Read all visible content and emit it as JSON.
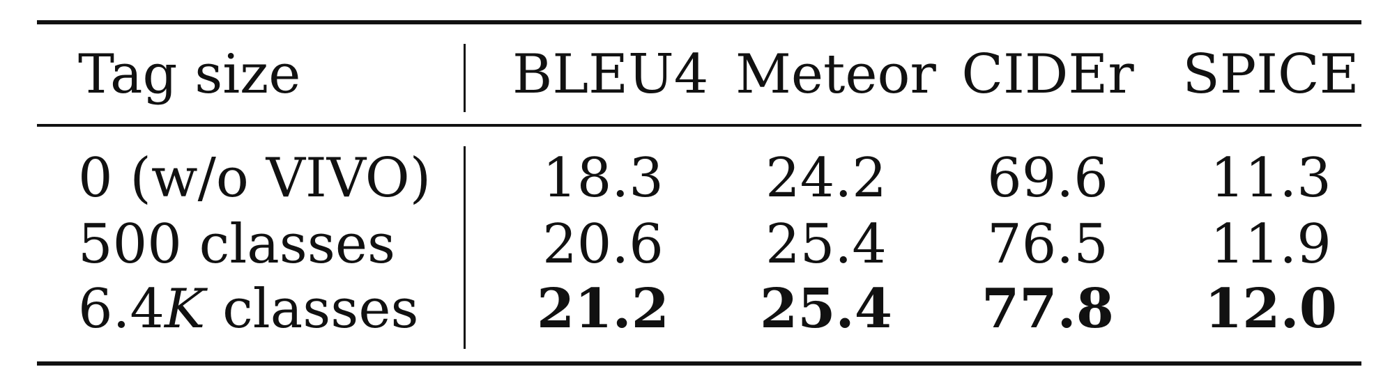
{
  "table": {
    "headers": [
      "Tag size",
      "BLEU4",
      "Meteor",
      "CIDEr",
      "SPICE"
    ],
    "rows": [
      {
        "label": "0 (w/o VIVO)",
        "values": [
          "18.3",
          "24.2",
          "69.6",
          "11.3"
        ],
        "bold": false
      },
      {
        "label": "500 classes",
        "values": [
          "20.6",
          "25.4",
          "76.5",
          "11.9"
        ],
        "bold": false
      },
      {
        "label_prefix": "6.4",
        "label_italic": "K",
        "label_suffix": " classes",
        "values": [
          "21.2",
          "25.4",
          "77.8",
          "12.0"
        ],
        "bold": true
      }
    ]
  }
}
